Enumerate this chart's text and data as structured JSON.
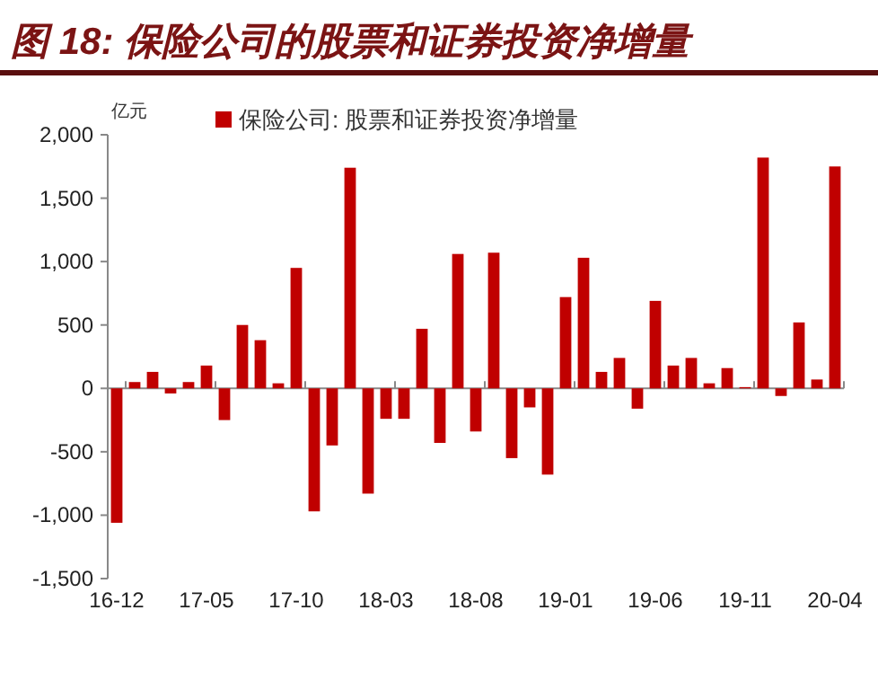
{
  "chart_data": {
    "type": "bar",
    "title": "图 18: 保险公司的股票和证券投资净增量",
    "ylabel": "亿元",
    "categories": [
      "16-12",
      null,
      null,
      null,
      null,
      "17-05",
      null,
      null,
      null,
      null,
      "17-10",
      null,
      null,
      null,
      null,
      "18-03",
      null,
      null,
      null,
      null,
      "18-08",
      null,
      null,
      null,
      null,
      "19-01",
      null,
      null,
      null,
      null,
      "19-06",
      null,
      null,
      null,
      null,
      "19-11",
      null,
      null,
      null,
      null,
      "20-04"
    ],
    "series": [
      {
        "name": "保险公司: 股票和证券投资净增量",
        "color": "#c00000",
        "values": [
          -1060,
          50,
          130,
          -40,
          50,
          180,
          -250,
          500,
          380,
          40,
          950,
          -970,
          -450,
          1740,
          -830,
          -240,
          -240,
          470,
          -430,
          1060,
          -340,
          1070,
          -550,
          -150,
          -680,
          720,
          1030,
          130,
          240,
          -160,
          690,
          180,
          240,
          40,
          160,
          10,
          1820,
          -60,
          520,
          70,
          1750
        ]
      }
    ],
    "ylim": [
      -1500,
      2000
    ],
    "yticks": [
      {
        "value": -1500,
        "label": "-1,500"
      },
      {
        "value": -1000,
        "label": "-1,000"
      },
      {
        "value": -500,
        "label": "-500"
      },
      0,
      500,
      {
        "value": 1000,
        "label": "1,000"
      },
      {
        "value": 1500,
        "label": "1,500"
      },
      {
        "value": 2000,
        "label": "2,000"
      }
    ],
    "legend": "top"
  }
}
